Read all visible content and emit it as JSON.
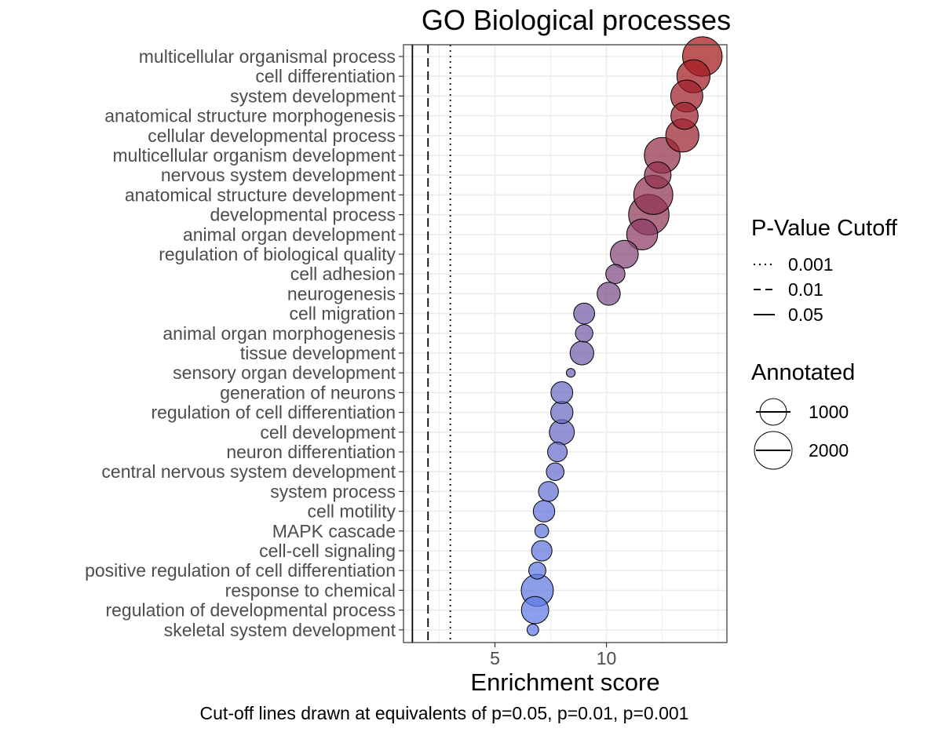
{
  "chart_data": {
    "type": "scatter",
    "title": "GO Biological processes",
    "xlabel": "Enrichment score",
    "caption": "Cut-off lines drawn at equivalents of p=0.05, p=0.01, p=0.001",
    "xlim": [
      0.9,
      15.4
    ],
    "xticks": [
      5,
      10
    ],
    "cutoff_lines": [
      {
        "label": "0.001",
        "x": 3.0,
        "style": "dotted"
      },
      {
        "label": "0.01",
        "x": 2.0,
        "style": "dashed"
      },
      {
        "label": "0.05",
        "x": 1.3,
        "style": "solid"
      }
    ],
    "legend": {
      "cutoff_title": "P-Value Cutoff",
      "size_title": "Annotated",
      "size_entries": [
        {
          "label": "1000",
          "value": 1000
        },
        {
          "label": "2000",
          "value": 2000
        }
      ]
    },
    "color_scale": {
      "low": "#5d7be8",
      "high": "#a51616"
    },
    "points": [
      {
        "term": "multicellular organismal process",
        "score": 14.3,
        "annotated": 2200
      },
      {
        "term": "cell differentiation",
        "score": 13.9,
        "annotated": 1550
      },
      {
        "term": "system development",
        "score": 13.6,
        "annotated": 1450
      },
      {
        "term": "anatomical structure morphogenesis",
        "score": 13.5,
        "annotated": 1050
      },
      {
        "term": "cellular developmental process",
        "score": 13.4,
        "annotated": 1550
      },
      {
        "term": "multicellular organism development",
        "score": 12.5,
        "annotated": 1800
      },
      {
        "term": "nervous system development",
        "score": 12.3,
        "annotated": 1000
      },
      {
        "term": "anatomical structure development",
        "score": 12.1,
        "annotated": 2150
      },
      {
        "term": "developmental process",
        "score": 11.9,
        "annotated": 2300
      },
      {
        "term": "animal organ development",
        "score": 11.6,
        "annotated": 1350
      },
      {
        "term": "regulation of biological quality",
        "score": 10.8,
        "annotated": 1100
      },
      {
        "term": "cell adhesion",
        "score": 10.4,
        "annotated": 520
      },
      {
        "term": "neurogenesis",
        "score": 10.1,
        "annotated": 750
      },
      {
        "term": "cell migration",
        "score": 9.0,
        "annotated": 620
      },
      {
        "term": "animal organ morphogenesis",
        "score": 9.0,
        "annotated": 430
      },
      {
        "term": "tissue development",
        "score": 8.9,
        "annotated": 790
      },
      {
        "term": "sensory organ development",
        "score": 8.4,
        "annotated": 110
      },
      {
        "term": "generation of neurons",
        "score": 8.0,
        "annotated": 670
      },
      {
        "term": "regulation of cell differentiation",
        "score": 8.0,
        "annotated": 700
      },
      {
        "term": "cell development",
        "score": 8.0,
        "annotated": 880
      },
      {
        "term": "neuron differentiation",
        "score": 7.8,
        "annotated": 540
      },
      {
        "term": "central nervous system development",
        "score": 7.7,
        "annotated": 440
      },
      {
        "term": "system process",
        "score": 7.4,
        "annotated": 560
      },
      {
        "term": "cell motility",
        "score": 7.2,
        "annotated": 650
      },
      {
        "term": "MAPK cascade",
        "score": 7.1,
        "annotated": 270
      },
      {
        "term": "cell-cell signaling",
        "score": 7.1,
        "annotated": 590
      },
      {
        "term": "positive regulation of cell differentiation",
        "score": 6.9,
        "annotated": 410
      },
      {
        "term": "response to chemical",
        "score": 6.9,
        "annotated": 1450
      },
      {
        "term": "regulation of developmental process",
        "score": 6.8,
        "annotated": 1050
      },
      {
        "term": "skeletal system development",
        "score": 6.7,
        "annotated": 190
      }
    ]
  }
}
